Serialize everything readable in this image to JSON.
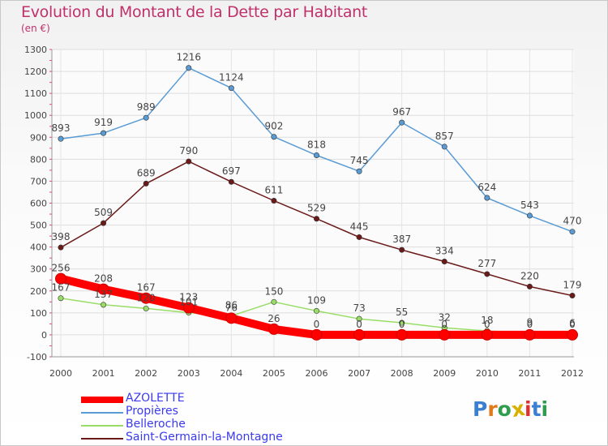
{
  "title": "Evolution du Montant de la Dette par Habitant",
  "subtitle": "(en €)",
  "logo": "Proxiti",
  "chart_data": {
    "type": "line",
    "title": "Evolution du Montant de la Dette par Habitant",
    "ylabel": "(en €)",
    "xlabel": "",
    "x": [
      "2000",
      "2001",
      "2002",
      "2003",
      "2004",
      "2005",
      "2006",
      "2007",
      "2008",
      "2009",
      "2010",
      "2011",
      "2012"
    ],
    "ylim": [
      -100,
      1300
    ],
    "yticks": [
      -100,
      0,
      100,
      200,
      300,
      400,
      500,
      600,
      700,
      800,
      900,
      1000,
      1100,
      1200,
      1300
    ],
    "grid": true,
    "legend_position": "bottom-left",
    "series": [
      {
        "name": "AZOLETTE",
        "color": "#ff0000",
        "values": [
          256,
          208,
          167,
          123,
          76,
          26,
          0,
          0,
          0,
          0,
          0,
          0,
          0
        ],
        "labels": [
          "256",
          "208",
          "167",
          "123",
          "76",
          "26",
          "0",
          "0",
          "0",
          "0",
          "0",
          "0",
          "0"
        ]
      },
      {
        "name": "Propières",
        "color": "#5a9bd4",
        "values": [
          893,
          919,
          989,
          1216,
          1124,
          902,
          818,
          745,
          967,
          857,
          624,
          543,
          470
        ],
        "labels": [
          "893",
          "919",
          "989",
          "1216",
          "1124",
          "902",
          "818",
          "745",
          "967",
          "857",
          "624",
          "543",
          "470"
        ]
      },
      {
        "name": "Belleroche",
        "color": "#99dd66",
        "values": [
          167,
          137,
          120,
          101,
          86,
          150,
          109,
          73,
          55,
          32,
          18,
          9,
          6
        ],
        "labels": [
          "167",
          "137",
          "120",
          "101",
          "86",
          "150",
          "109",
          "73",
          "55",
          "32",
          "18",
          "9",
          "6"
        ]
      },
      {
        "name": "Saint-Germain-la-Montagne",
        "color": "#6b1a1a",
        "values": [
          398,
          509,
          689,
          790,
          697,
          611,
          529,
          445,
          387,
          334,
          277,
          220,
          179
        ],
        "labels": [
          "398",
          "509",
          "689",
          "790",
          "697",
          "611",
          "529",
          "445",
          "387",
          "334",
          "277",
          "220",
          "179"
        ]
      }
    ]
  }
}
